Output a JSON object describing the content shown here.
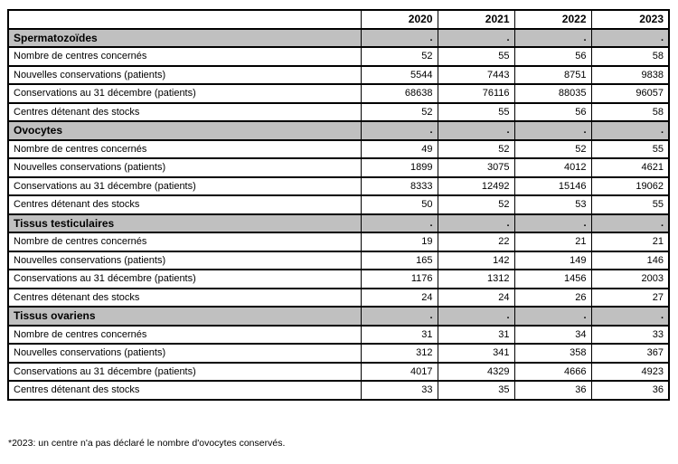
{
  "table": {
    "columns": [
      "",
      "2020",
      "2021",
      "2022",
      "2023"
    ],
    "sections": [
      {
        "title": "Spermatozoïdes",
        "placeholders": [
          ".",
          ".",
          ".",
          "."
        ],
        "rows": [
          {
            "label": "Nombre de centres concernés",
            "values": [
              "52",
              "55",
              "56",
              "58"
            ]
          },
          {
            "label": "Nouvelles conservations (patients)",
            "values": [
              "5544",
              "7443",
              "8751",
              "9838"
            ]
          },
          {
            "label": "Conservations au 31 décembre (patients)",
            "values": [
              "68638",
              "76116",
              "88035",
              "96057"
            ]
          },
          {
            "label": "Centres détenant des stocks",
            "values": [
              "52",
              "55",
              "56",
              "58"
            ]
          }
        ]
      },
      {
        "title": "Ovocytes",
        "placeholders": [
          ".",
          ".",
          ".",
          "."
        ],
        "rows": [
          {
            "label": "Nombre de centres concernés",
            "values": [
              "49",
              "52",
              "52",
              "55"
            ]
          },
          {
            "label": "Nouvelles conservations (patients)",
            "values": [
              "1899",
              "3075",
              "4012",
              "4621"
            ]
          },
          {
            "label": "Conservations au 31 décembre (patients)",
            "values": [
              "8333",
              "12492",
              "15146",
              "19062"
            ]
          },
          {
            "label": "Centres détenant des stocks",
            "values": [
              "50",
              "52",
              "53",
              "55"
            ]
          }
        ]
      },
      {
        "title": "Tissus testiculaires",
        "placeholders": [
          ".",
          ".",
          ".",
          "."
        ],
        "rows": [
          {
            "label": "Nombre de centres concernés",
            "values": [
              "19",
              "22",
              "21",
              "21"
            ]
          },
          {
            "label": "Nouvelles conservations (patients)",
            "values": [
              "165",
              "142",
              "149",
              "146"
            ]
          },
          {
            "label": "Conservations au 31 décembre (patients)",
            "values": [
              "1176",
              "1312",
              "1456",
              "2003"
            ]
          },
          {
            "label": "Centres détenant des stocks",
            "values": [
              "24",
              "24",
              "26",
              "27"
            ]
          }
        ]
      },
      {
        "title": "Tissus ovariens",
        "placeholders": [
          ".",
          ".",
          ".",
          "."
        ],
        "rows": [
          {
            "label": "Nombre de centres concernés",
            "values": [
              "31",
              "31",
              "34",
              "33"
            ]
          },
          {
            "label": "Nouvelles conservations (patients)",
            "values": [
              "312",
              "341",
              "358",
              "367"
            ]
          },
          {
            "label": "Conservations au 31 décembre (patients)",
            "values": [
              "4017",
              "4329",
              "4666",
              "4923"
            ]
          },
          {
            "label": "Centres détenant des stocks",
            "values": [
              "33",
              "35",
              "36",
              "36"
            ]
          }
        ]
      }
    ]
  },
  "footnote": "*2023: un centre n'a pas déclaré le nombre d'ovocytes conservés.",
  "colors": {
    "section_bg": "#c0c0c0",
    "border": "#000000",
    "background": "#ffffff"
  }
}
